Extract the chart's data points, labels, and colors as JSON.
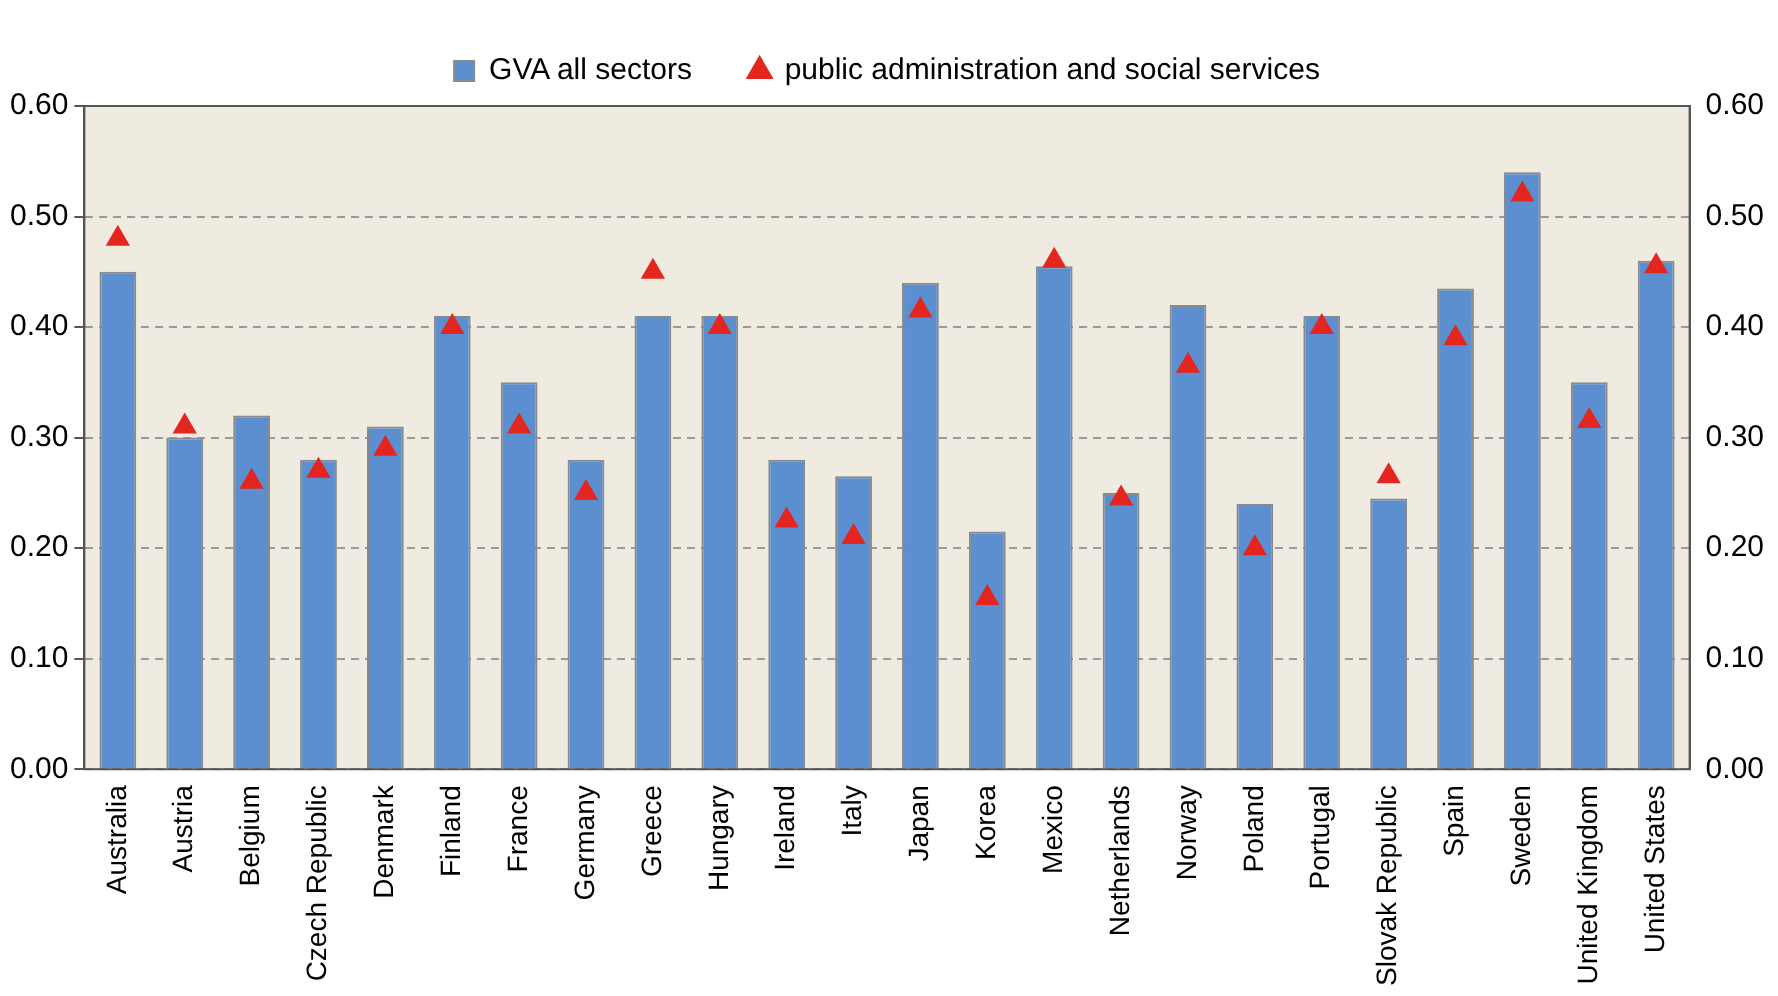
{
  "chart_data": {
    "type": "bar",
    "categories": [
      "Australia",
      "Austria",
      "Belgium",
      "Czech Republic",
      "Denmark",
      "Finland",
      "France",
      "Germany",
      "Greece",
      "Hungary",
      "Ireland",
      "Italy",
      "Japan",
      "Korea",
      "Mexico",
      "Netherlands",
      "Norway",
      "Poland",
      "Portugal",
      "Slovak Republic",
      "Spain",
      "Sweden",
      "United Kingdom",
      "United States"
    ],
    "series": [
      {
        "name": "GVA all sectors",
        "color": "#5b8fcf",
        "values": [
          0.45,
          0.3,
          0.32,
          0.28,
          0.31,
          0.41,
          0.35,
          0.28,
          0.41,
          0.41,
          0.28,
          0.265,
          0.44,
          0.215,
          0.455,
          0.25,
          0.42,
          0.24,
          0.41,
          0.245,
          0.435,
          0.54,
          0.35,
          0.46
        ]
      },
      {
        "name": "public administration and social services",
        "type": "scatter",
        "marker": "triangle",
        "color": "#e3261f",
        "x": [
          "Australia",
          "Austria",
          "Belgium",
          "Czech Republic",
          "Denmark",
          "Finland",
          "France",
          "Germany",
          "Greece",
          "Hungary",
          "Ireland",
          "Italy",
          "Japan",
          "Korea",
          "Mexico",
          "Netherlands",
          "Norway",
          "Poland",
          "Portugal",
          "Slovak Republic",
          "Spain",
          "Sweden",
          "United Kingdom",
          "United States"
        ],
        "values": [
          0.48,
          0.31,
          0.26,
          0.27,
          0.29,
          0.4,
          0.31,
          0.25,
          0.45,
          0.4,
          0.225,
          0.21,
          0.415,
          0.155,
          0.46,
          0.245,
          0.365,
          0.2,
          0.4,
          0.265,
          0.39,
          0.52,
          0.315,
          0.455
        ]
      }
    ],
    "ylim": [
      0,
      0.6
    ],
    "yticks": [
      {
        "value": 0,
        "label": "0.00"
      },
      {
        "value": 0.1,
        "label": "0.10"
      },
      {
        "value": 0.2,
        "label": "0.20"
      },
      {
        "value": 0.3,
        "label": "0.30"
      },
      {
        "value": 0.4,
        "label": "0.40"
      },
      {
        "value": 0.5,
        "label": "0.50"
      },
      {
        "value": 0.6,
        "label": "0.60"
      }
    ],
    "y2lim": [
      0,
      0.6
    ],
    "y2ticks": [
      {
        "value": 0,
        "label": "0.00"
      },
      {
        "value": 0.1,
        "label": "0.10"
      },
      {
        "value": 0.2,
        "label": "0.20"
      },
      {
        "value": 0.3,
        "label": "0.30"
      },
      {
        "value": 0.4,
        "label": "0.40"
      },
      {
        "value": 0.5,
        "label": "0.50"
      },
      {
        "value": 0.6,
        "label": "0.60"
      }
    ],
    "grid": "y",
    "legend": "top"
  }
}
